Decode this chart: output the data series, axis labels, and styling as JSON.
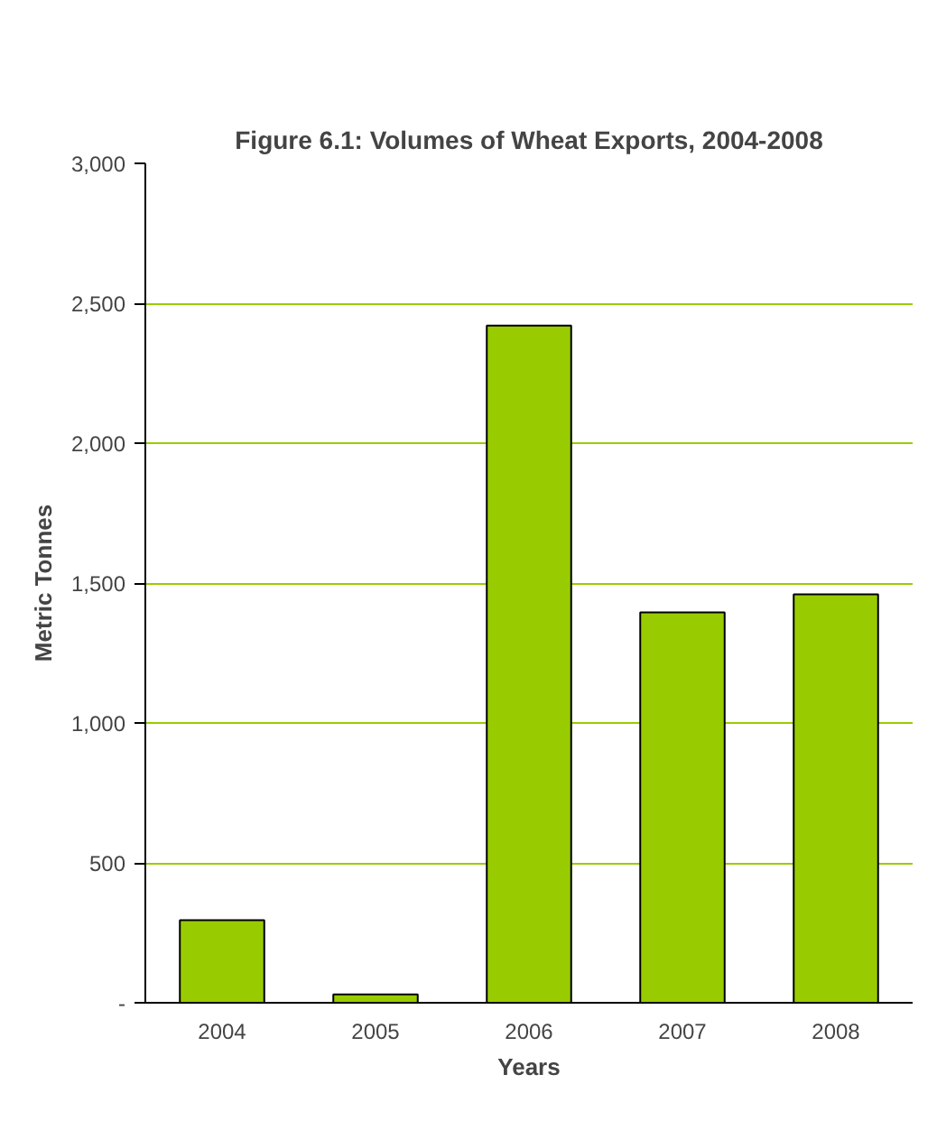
{
  "chart_data": {
    "type": "bar",
    "title": "Figure 6.1: Volumes of Wheat Exports, 2004-2008",
    "xlabel": "Years",
    "ylabel": "Metric Tonnes",
    "categories": [
      "2004",
      "2005",
      "2006",
      "2007",
      "2008"
    ],
    "values": [
      295,
      30,
      2420,
      1395,
      1460
    ],
    "color": "#99cc00",
    "ylim": [
      0,
      3000
    ],
    "yticks": [
      {
        "value": 0,
        "label": "-"
      },
      {
        "value": 500,
        "label": "500"
      },
      {
        "value": 1000,
        "label": "1,000"
      },
      {
        "value": 1500,
        "label": "1,500"
      },
      {
        "value": 2000,
        "label": "2,000"
      },
      {
        "value": 2500,
        "label": "2,500"
      },
      {
        "value": 3000,
        "label": "3,000"
      }
    ],
    "grid": "y"
  }
}
